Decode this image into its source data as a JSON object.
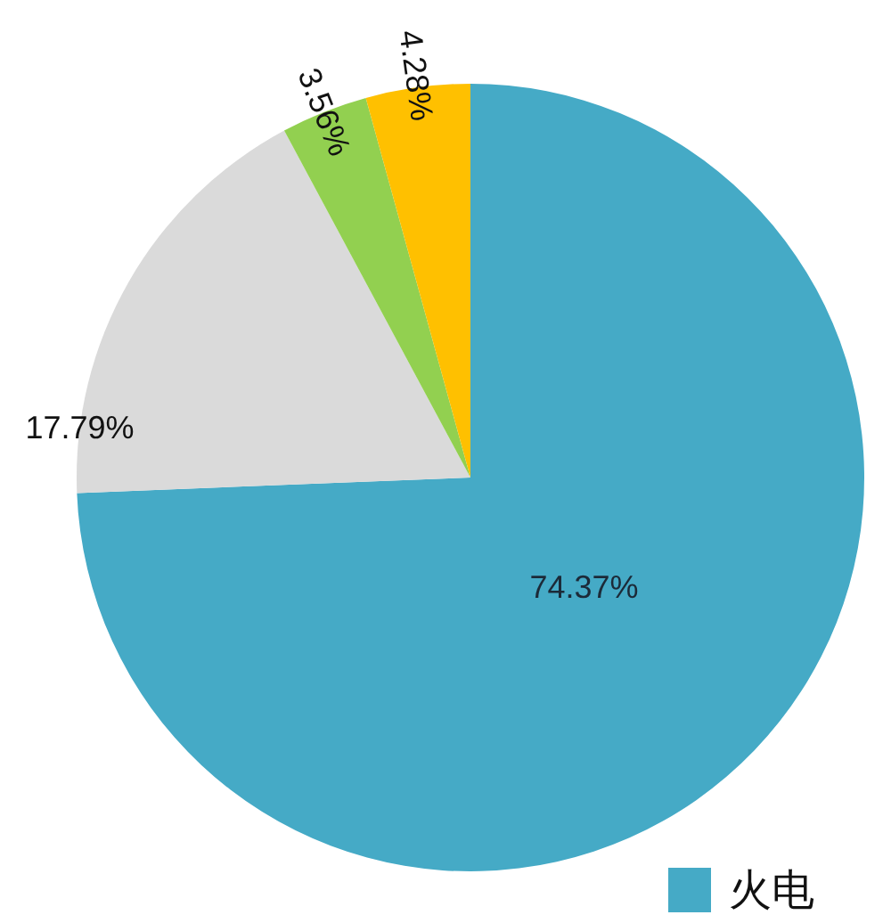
{
  "chart_data": {
    "type": "pie",
    "categories": [
      "火电",
      null,
      null,
      null
    ],
    "values": [
      74.37,
      17.79,
      3.56,
      4.28
    ],
    "colors": [
      "#45aac6",
      "#dadada",
      "#92d050",
      "#ffc000"
    ],
    "value_labels": [
      "74.37%",
      "17.79%",
      "3.56%",
      "4.28%"
    ],
    "legend": "bottom right"
  }
}
